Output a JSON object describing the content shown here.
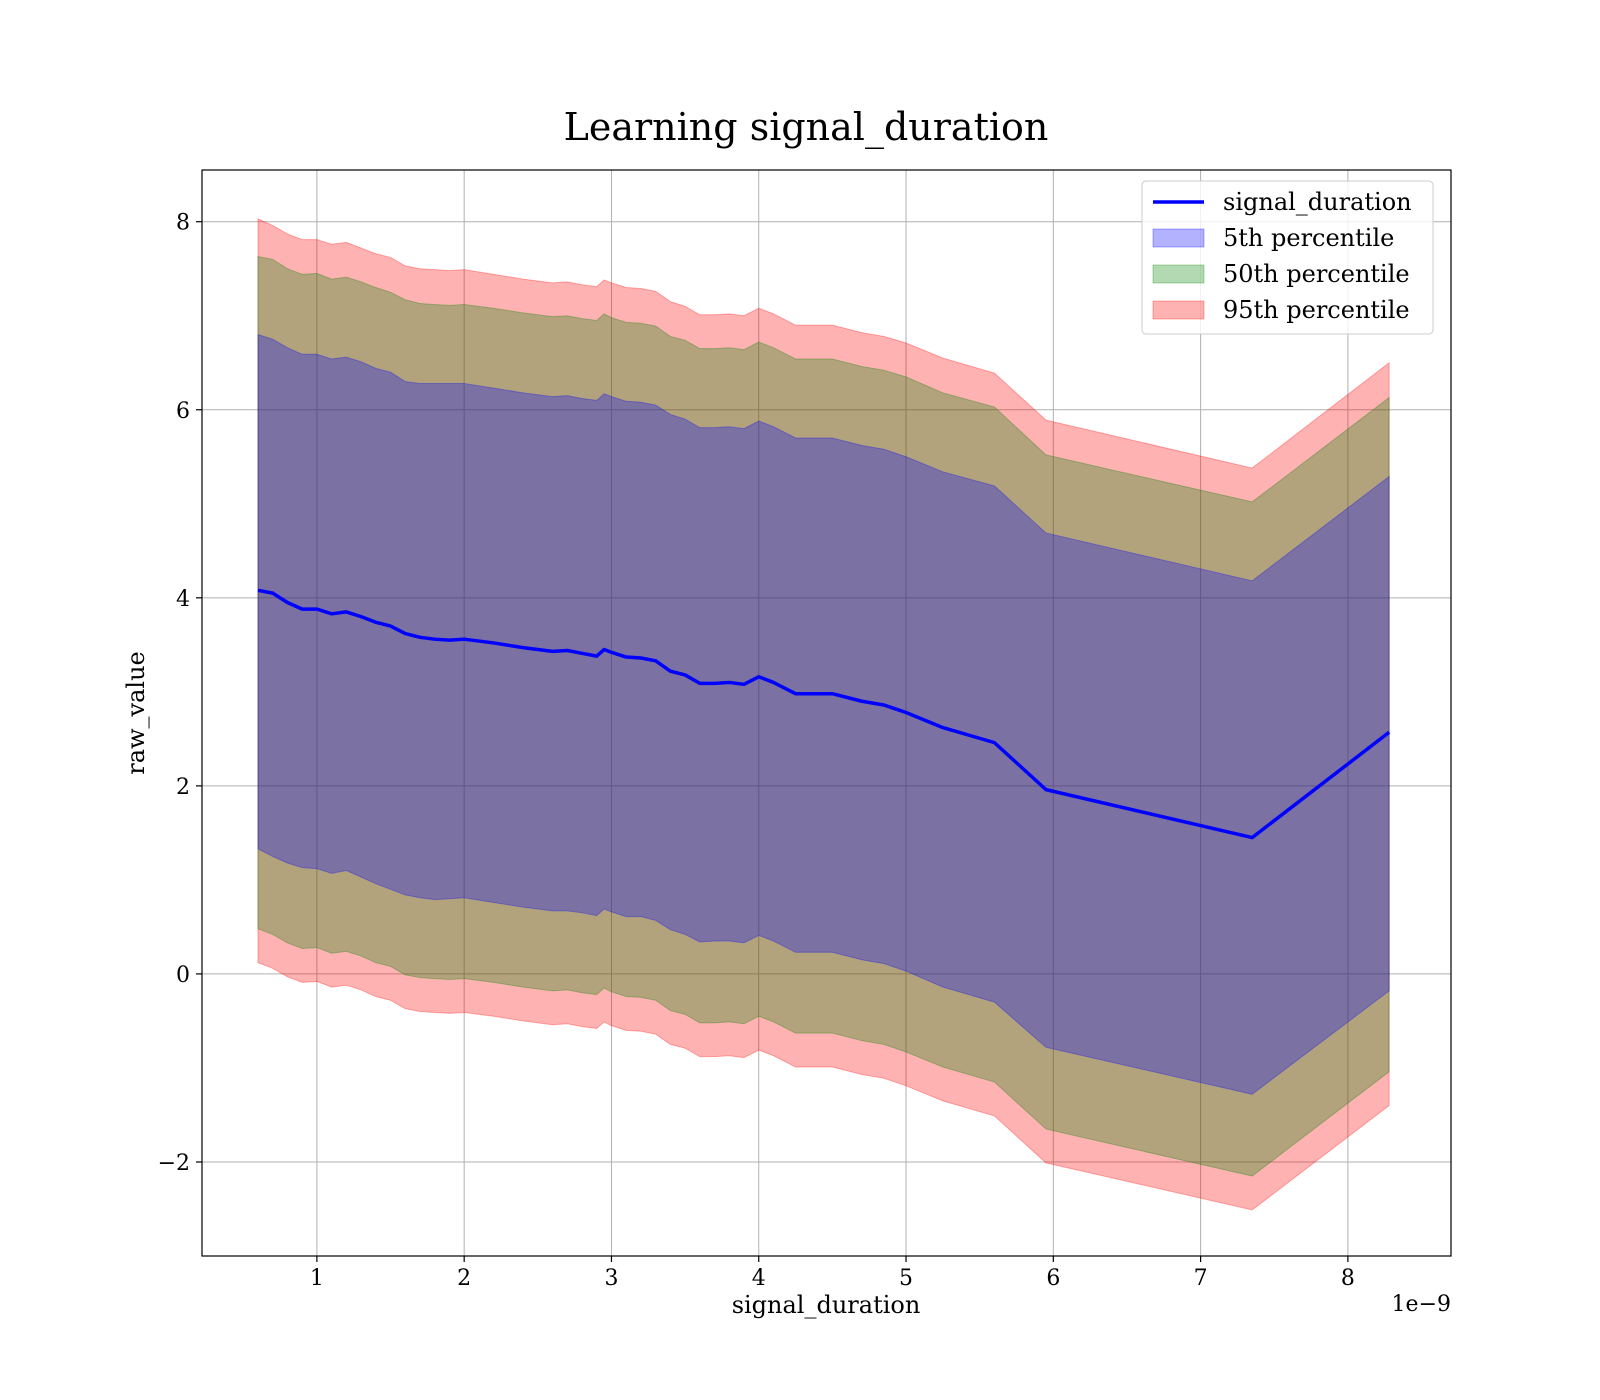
{
  "chart_data": {
    "type": "area",
    "title": "Learning signal_duration",
    "xlabel": "signal_duration",
    "ylabel": "raw_value",
    "x_offset_label": "1e−9",
    "xlim": [
      0.22,
      8.7
    ],
    "ylim": [
      -3.0,
      8.55
    ],
    "x_ticks": [
      1,
      2,
      3,
      4,
      5,
      6,
      7,
      8
    ],
    "y_ticks": [
      -2,
      0,
      2,
      4,
      6,
      8
    ],
    "x_tick_labels": [
      "1",
      "2",
      "3",
      "4",
      "5",
      "6",
      "7",
      "8"
    ],
    "y_tick_labels": [
      "−2",
      "0",
      "2",
      "4",
      "6",
      "8"
    ],
    "grid": true,
    "legend_position": "top-right",
    "x": [
      0.6,
      0.7,
      0.8,
      0.9,
      1.0,
      1.1,
      1.2,
      1.3,
      1.4,
      1.5,
      1.6,
      1.7,
      1.8,
      1.9,
      2.0,
      2.2,
      2.4,
      2.6,
      2.7,
      2.8,
      2.9,
      2.95,
      3.0,
      3.1,
      3.2,
      3.3,
      3.4,
      3.5,
      3.6,
      3.7,
      3.8,
      3.9,
      4.0,
      4.1,
      4.25,
      4.5,
      4.7,
      4.85,
      5.0,
      5.25,
      5.6,
      5.95,
      7.35,
      8.28
    ],
    "series": [
      {
        "name": "signal_duration",
        "type": "line",
        "color": "#0000ff",
        "values": [
          4.08,
          4.05,
          3.95,
          3.88,
          3.88,
          3.83,
          3.85,
          3.8,
          3.74,
          3.7,
          3.62,
          3.58,
          3.56,
          3.55,
          3.56,
          3.52,
          3.47,
          3.43,
          3.44,
          3.41,
          3.38,
          3.45,
          3.42,
          3.37,
          3.36,
          3.33,
          3.22,
          3.18,
          3.09,
          3.09,
          3.1,
          3.08,
          3.16,
          3.1,
          2.98,
          2.98,
          2.9,
          2.86,
          2.78,
          2.62,
          2.46,
          1.96,
          1.45,
          2.57
        ]
      },
      {
        "name": "5th percentile",
        "type": "band",
        "color": "#0000ff",
        "opacity": 0.3,
        "lower": [
          1.33,
          1.25,
          1.18,
          1.13,
          1.12,
          1.07,
          1.1,
          1.03,
          0.96,
          0.9,
          0.84,
          0.81,
          0.79,
          0.8,
          0.81,
          0.76,
          0.71,
          0.67,
          0.67,
          0.65,
          0.62,
          0.69,
          0.66,
          0.61,
          0.61,
          0.57,
          0.47,
          0.42,
          0.34,
          0.35,
          0.35,
          0.33,
          0.41,
          0.35,
          0.23,
          0.23,
          0.15,
          0.11,
          0.03,
          -0.14,
          -0.3,
          -0.78,
          -1.28,
          -0.18
        ],
        "upper": [
          6.8,
          6.75,
          6.66,
          6.59,
          6.59,
          6.54,
          6.56,
          6.51,
          6.44,
          6.4,
          6.3,
          6.28,
          6.28,
          6.28,
          6.28,
          6.23,
          6.18,
          6.14,
          6.15,
          6.12,
          6.1,
          6.17,
          6.14,
          6.09,
          6.08,
          6.05,
          5.95,
          5.9,
          5.81,
          5.81,
          5.82,
          5.8,
          5.88,
          5.82,
          5.7,
          5.7,
          5.62,
          5.58,
          5.5,
          5.34,
          5.19,
          4.69,
          4.18,
          5.29
        ]
      },
      {
        "name": "50th percentile",
        "type": "band",
        "color": "#008000",
        "opacity": 0.3,
        "lower": [
          0.48,
          0.42,
          0.33,
          0.27,
          0.28,
          0.22,
          0.24,
          0.19,
          0.12,
          0.08,
          -0.01,
          -0.04,
          -0.05,
          -0.06,
          -0.05,
          -0.09,
          -0.14,
          -0.18,
          -0.17,
          -0.2,
          -0.22,
          -0.15,
          -0.19,
          -0.24,
          -0.25,
          -0.28,
          -0.39,
          -0.43,
          -0.52,
          -0.52,
          -0.51,
          -0.53,
          -0.45,
          -0.51,
          -0.63,
          -0.63,
          -0.71,
          -0.75,
          -0.83,
          -0.99,
          -1.15,
          -1.65,
          -2.15,
          -1.04
        ],
        "upper": [
          7.63,
          7.6,
          7.5,
          7.44,
          7.45,
          7.39,
          7.41,
          7.36,
          7.3,
          7.25,
          7.17,
          7.13,
          7.12,
          7.11,
          7.12,
          7.08,
          7.03,
          6.99,
          7.0,
          6.97,
          6.95,
          7.02,
          6.98,
          6.93,
          6.92,
          6.89,
          6.78,
          6.74,
          6.65,
          6.65,
          6.66,
          6.64,
          6.72,
          6.66,
          6.54,
          6.54,
          6.46,
          6.42,
          6.35,
          6.18,
          6.03,
          5.52,
          5.02,
          6.13
        ]
      },
      {
        "name": "95th percentile",
        "type": "band",
        "color": "#ff0000",
        "opacity": 0.3,
        "lower": [
          0.12,
          0.06,
          -0.03,
          -0.09,
          -0.08,
          -0.14,
          -0.12,
          -0.17,
          -0.24,
          -0.28,
          -0.37,
          -0.4,
          -0.41,
          -0.42,
          -0.41,
          -0.45,
          -0.5,
          -0.54,
          -0.53,
          -0.56,
          -0.58,
          -0.51,
          -0.55,
          -0.6,
          -0.61,
          -0.64,
          -0.75,
          -0.79,
          -0.88,
          -0.88,
          -0.87,
          -0.89,
          -0.81,
          -0.87,
          -0.99,
          -0.99,
          -1.07,
          -1.11,
          -1.19,
          -1.35,
          -1.51,
          -2.01,
          -2.51,
          -1.4
        ],
        "upper": [
          8.03,
          7.96,
          7.87,
          7.81,
          7.81,
          7.76,
          7.78,
          7.72,
          7.66,
          7.62,
          7.53,
          7.5,
          7.49,
          7.48,
          7.49,
          7.44,
          7.39,
          7.35,
          7.36,
          7.33,
          7.31,
          7.38,
          7.35,
          7.3,
          7.29,
          7.26,
          7.15,
          7.1,
          7.01,
          7.01,
          7.02,
          7.0,
          7.08,
          7.02,
          6.9,
          6.9,
          6.82,
          6.78,
          6.71,
          6.55,
          6.39,
          5.89,
          5.38,
          6.5
        ]
      }
    ]
  }
}
